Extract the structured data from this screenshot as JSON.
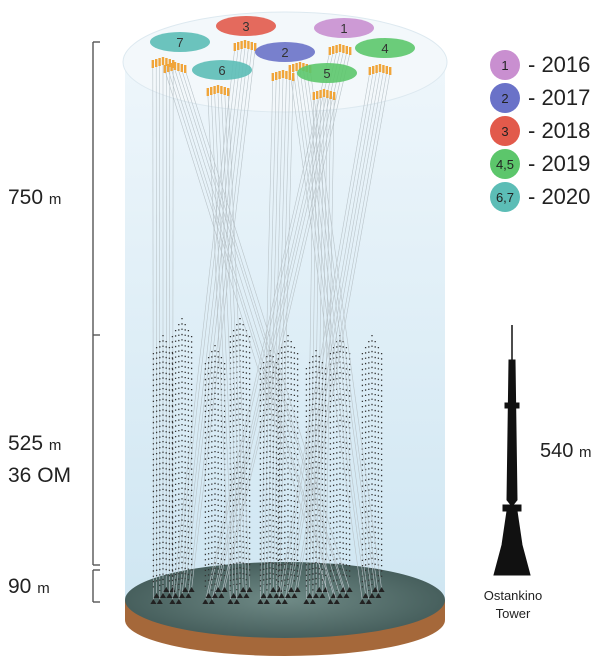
{
  "heights": {
    "top_value": "750",
    "top_unit": "m",
    "mid_value": "525",
    "mid_unit": "m",
    "mid_om": "36 OM",
    "bottom_value": "90",
    "bottom_unit": "m"
  },
  "legend": [
    {
      "label": "1",
      "year": "- 2016",
      "color": "#c98fd0"
    },
    {
      "label": "2",
      "year": "- 2017",
      "color": "#6a72c8"
    },
    {
      "label": "3",
      "year": "- 2018",
      "color": "#e25a4b"
    },
    {
      "label": "4,5",
      "year": "- 2019",
      "color": "#5cc66b"
    },
    {
      "label": "6,7",
      "year": "- 2020",
      "color": "#5cbdb6"
    }
  ],
  "tower": {
    "height_value": "540",
    "height_unit": "m",
    "name_line1": "Ostankino",
    "name_line2": "Tower"
  },
  "cluster_tags": [
    "1",
    "2",
    "3",
    "4",
    "5",
    "6",
    "7"
  ]
}
